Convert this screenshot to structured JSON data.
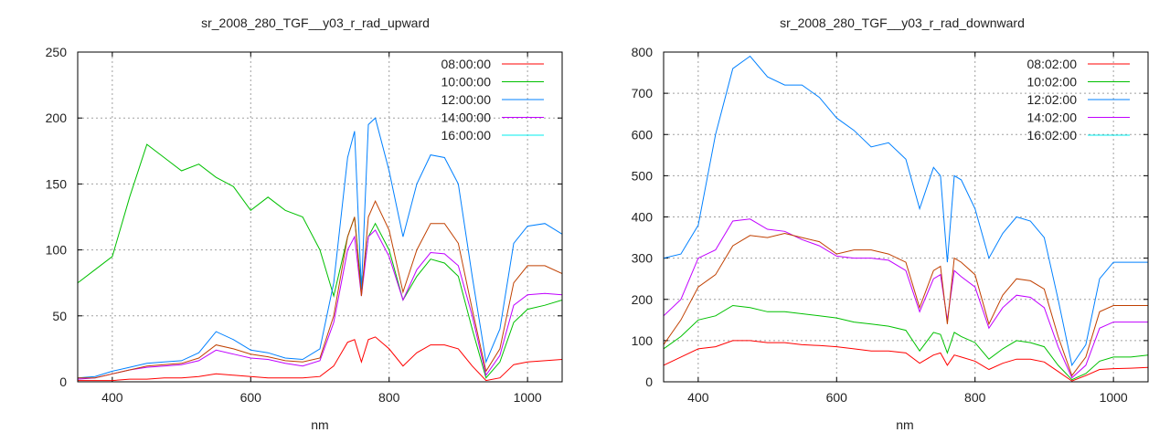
{
  "chart_data": [
    {
      "type": "line",
      "title": "sr_2008_280_TGF__y03_r_rad_upward",
      "xlabel": "nm",
      "ylabel": "",
      "xlim": [
        350,
        1050
      ],
      "ylim": [
        0,
        250
      ],
      "xticks": [
        400,
        600,
        800,
        1000
      ],
      "yticks": [
        0,
        50,
        100,
        150,
        200,
        250
      ],
      "grid": true,
      "legend_position": "top-right",
      "x": [
        350,
        375,
        400,
        425,
        450,
        475,
        500,
        525,
        550,
        575,
        600,
        625,
        650,
        675,
        700,
        720,
        740,
        750,
        760,
        770,
        780,
        800,
        820,
        840,
        860,
        880,
        900,
        920,
        940,
        960,
        980,
        1000,
        1025,
        1050
      ],
      "series": [
        {
          "name": "08:00:00",
          "color": "#ff0000",
          "line_color": "#ff0000",
          "values": [
            1,
            1,
            1,
            2,
            2,
            3,
            3,
            4,
            6,
            5,
            4,
            3,
            3,
            3,
            4,
            12,
            30,
            32,
            15,
            32,
            34,
            25,
            12,
            22,
            28,
            28,
            25,
            12,
            1,
            3,
            13,
            15,
            16,
            17
          ]
        },
        {
          "name": "10:00:00",
          "color": "#00c000",
          "line_color": "#00c000",
          "values": [
            75,
            85,
            95,
            140,
            180,
            170,
            160,
            165,
            155,
            148,
            130,
            140,
            130,
            125,
            100,
            65,
            110,
            125,
            70,
            110,
            120,
            100,
            62,
            80,
            93,
            90,
            80,
            40,
            3,
            15,
            45,
            55,
            58,
            62
          ]
        },
        {
          "name": "12:00:00",
          "color": "#0080ff",
          "line_color": "#0080ff",
          "values": [
            3,
            4,
            8,
            11,
            14,
            15,
            16,
            22,
            38,
            32,
            24,
            22,
            18,
            17,
            25,
            75,
            170,
            190,
            70,
            195,
            200,
            160,
            110,
            150,
            172,
            170,
            150,
            80,
            15,
            40,
            105,
            118,
            120,
            112
          ]
        },
        {
          "name": "14:00:00",
          "color": "#c000ff",
          "line_color": "#c000ff",
          "values": [
            2,
            3,
            6,
            9,
            11,
            12,
            13,
            16,
            24,
            21,
            18,
            17,
            14,
            12,
            16,
            45,
            100,
            110,
            65,
            110,
            115,
            95,
            62,
            85,
            98,
            97,
            88,
            50,
            5,
            20,
            58,
            66,
            67,
            66
          ]
        },
        {
          "name": "16:00:00",
          "color": "#00eeee",
          "line_color": "#c04000",
          "values": [
            3,
            3,
            6,
            9,
            12,
            13,
            14,
            18,
            28,
            25,
            21,
            19,
            16,
            15,
            18,
            50,
            110,
            125,
            65,
            125,
            137,
            115,
            68,
            100,
            120,
            120,
            105,
            55,
            8,
            25,
            75,
            88,
            88,
            82
          ]
        }
      ]
    },
    {
      "type": "line",
      "title": "sr_2008_280_TGF__y03_r_rad_downward",
      "xlabel": "nm",
      "ylabel": "",
      "xlim": [
        350,
        1050
      ],
      "ylim": [
        0,
        800
      ],
      "xticks": [
        400,
        600,
        800,
        1000
      ],
      "yticks": [
        0,
        100,
        200,
        300,
        400,
        500,
        600,
        700,
        800
      ],
      "grid": true,
      "legend_position": "top-right",
      "x": [
        350,
        375,
        400,
        425,
        450,
        475,
        500,
        525,
        550,
        575,
        600,
        625,
        650,
        675,
        700,
        720,
        740,
        750,
        760,
        770,
        780,
        800,
        820,
        840,
        860,
        880,
        900,
        920,
        940,
        960,
        980,
        1000,
        1025,
        1050
      ],
      "series": [
        {
          "name": "08:02:00",
          "color": "#ff0000",
          "line_color": "#ff0000",
          "values": [
            40,
            60,
            80,
            85,
            100,
            100,
            95,
            95,
            90,
            88,
            85,
            80,
            75,
            75,
            70,
            45,
            65,
            70,
            40,
            65,
            60,
            50,
            30,
            45,
            55,
            55,
            48,
            25,
            2,
            15,
            30,
            32,
            33,
            35
          ]
        },
        {
          "name": "10:02:00",
          "color": "#00c000",
          "line_color": "#00c000",
          "values": [
            80,
            110,
            150,
            160,
            185,
            180,
            170,
            170,
            165,
            160,
            155,
            145,
            140,
            135,
            125,
            75,
            120,
            115,
            70,
            120,
            110,
            95,
            55,
            80,
            100,
            95,
            85,
            40,
            5,
            20,
            50,
            60,
            60,
            65
          ]
        },
        {
          "name": "12:02:00",
          "color": "#0080ff",
          "line_color": "#0080ff",
          "values": [
            300,
            310,
            380,
            600,
            760,
            790,
            740,
            720,
            720,
            690,
            640,
            610,
            570,
            580,
            540,
            420,
            520,
            500,
            290,
            500,
            490,
            420,
            300,
            360,
            400,
            390,
            350,
            200,
            40,
            90,
            250,
            290,
            290,
            290
          ]
        },
        {
          "name": "14:02:00",
          "color": "#c000ff",
          "line_color": "#c000ff",
          "values": [
            160,
            200,
            300,
            320,
            390,
            395,
            370,
            365,
            345,
            330,
            305,
            300,
            300,
            295,
            270,
            170,
            250,
            260,
            150,
            270,
            255,
            230,
            130,
            180,
            210,
            205,
            180,
            85,
            10,
            40,
            130,
            145,
            145,
            145
          ]
        },
        {
          "name": "16:02:00",
          "color": "#00eeee",
          "line_color": "#c04000",
          "values": [
            90,
            150,
            230,
            260,
            330,
            355,
            350,
            360,
            350,
            340,
            310,
            320,
            320,
            310,
            290,
            180,
            270,
            280,
            140,
            300,
            290,
            260,
            140,
            210,
            250,
            245,
            225,
            110,
            15,
            60,
            170,
            185,
            185,
            185
          ]
        }
      ]
    }
  ]
}
